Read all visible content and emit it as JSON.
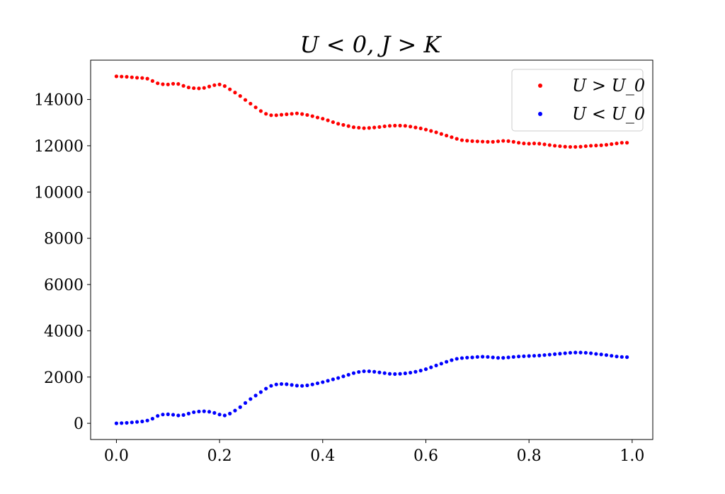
{
  "chart_data": {
    "type": "scatter",
    "title": "U < 0, J > K",
    "xlabel": "",
    "ylabel": "",
    "xlim": [
      -0.05,
      1.04
    ],
    "ylim": [
      -700,
      15700
    ],
    "xticks": [
      0.0,
      0.2,
      0.4,
      0.6,
      0.8,
      1.0
    ],
    "xtick_labels": [
      "0.0",
      "0.2",
      "0.4",
      "0.6",
      "0.8",
      "1.0"
    ],
    "yticks": [
      0,
      2000,
      4000,
      6000,
      8000,
      10000,
      12000,
      14000
    ],
    "ytick_labels": [
      "0",
      "2000",
      "4000",
      "6000",
      "8000",
      "10000",
      "12000",
      "14000"
    ],
    "grid": false,
    "legend_position": "top-right",
    "x": [
      0.0,
      0.01,
      0.02,
      0.03,
      0.04,
      0.05,
      0.06,
      0.07,
      0.08,
      0.09,
      0.1,
      0.11,
      0.12,
      0.13,
      0.14,
      0.15,
      0.16,
      0.17,
      0.18,
      0.19,
      0.2,
      0.21,
      0.22,
      0.23,
      0.24,
      0.25,
      0.26,
      0.27,
      0.28,
      0.29,
      0.3,
      0.31,
      0.32,
      0.33,
      0.34,
      0.35,
      0.36,
      0.37,
      0.38,
      0.39,
      0.4,
      0.41,
      0.42,
      0.43,
      0.44,
      0.45,
      0.46,
      0.47,
      0.48,
      0.49,
      0.5,
      0.51,
      0.52,
      0.53,
      0.54,
      0.55,
      0.56,
      0.57,
      0.58,
      0.59,
      0.6,
      0.61,
      0.62,
      0.63,
      0.64,
      0.65,
      0.66,
      0.67,
      0.68,
      0.69,
      0.7,
      0.71,
      0.72,
      0.73,
      0.74,
      0.75,
      0.76,
      0.77,
      0.78,
      0.79,
      0.8,
      0.81,
      0.82,
      0.83,
      0.84,
      0.85,
      0.86,
      0.87,
      0.88,
      0.89,
      0.9,
      0.91,
      0.92,
      0.93,
      0.94,
      0.95,
      0.96,
      0.97,
      0.98,
      0.99
    ],
    "series": [
      {
        "name": "U > U_0",
        "color": "#ff0000",
        "values": [
          15000,
          14990,
          14980,
          14960,
          14940,
          14930,
          14900,
          14800,
          14700,
          14660,
          14650,
          14680,
          14670,
          14590,
          14520,
          14490,
          14480,
          14500,
          14560,
          14620,
          14650,
          14580,
          14440,
          14300,
          14150,
          13980,
          13820,
          13660,
          13500,
          13380,
          13320,
          13320,
          13340,
          13360,
          13380,
          13400,
          13370,
          13330,
          13280,
          13220,
          13170,
          13100,
          13020,
          12950,
          12900,
          12850,
          12800,
          12780,
          12760,
          12770,
          12790,
          12810,
          12840,
          12860,
          12870,
          12870,
          12860,
          12830,
          12790,
          12750,
          12700,
          12640,
          12580,
          12510,
          12440,
          12370,
          12300,
          12240,
          12220,
          12200,
          12190,
          12180,
          12170,
          12170,
          12190,
          12210,
          12200,
          12170,
          12130,
          12100,
          12090,
          12100,
          12090,
          12060,
          12030,
          12000,
          11980,
          11960,
          11950,
          11950,
          11960,
          11980,
          12000,
          12010,
          12020,
          12040,
          12070,
          12100,
          12130,
          12130
        ]
      },
      {
        "name": "U < U_0",
        "color": "#0000ff",
        "values": [
          0,
          10,
          20,
          40,
          60,
          80,
          120,
          200,
          320,
          380,
          390,
          370,
          340,
          360,
          420,
          480,
          510,
          520,
          500,
          450,
          380,
          340,
          420,
          550,
          700,
          880,
          1050,
          1200,
          1350,
          1500,
          1620,
          1680,
          1700,
          1690,
          1660,
          1630,
          1620,
          1640,
          1680,
          1730,
          1780,
          1840,
          1900,
          1960,
          2030,
          2100,
          2170,
          2220,
          2250,
          2250,
          2230,
          2200,
          2170,
          2140,
          2130,
          2140,
          2160,
          2190,
          2230,
          2280,
          2340,
          2420,
          2500,
          2580,
          2660,
          2730,
          2790,
          2820,
          2840,
          2850,
          2870,
          2880,
          2870,
          2850,
          2830,
          2830,
          2850,
          2870,
          2890,
          2900,
          2910,
          2920,
          2930,
          2950,
          2970,
          2990,
          3010,
          3030,
          3050,
          3060,
          3060,
          3050,
          3030,
          3000,
          2980,
          2950,
          2920,
          2890,
          2870,
          2860
        ]
      }
    ]
  }
}
